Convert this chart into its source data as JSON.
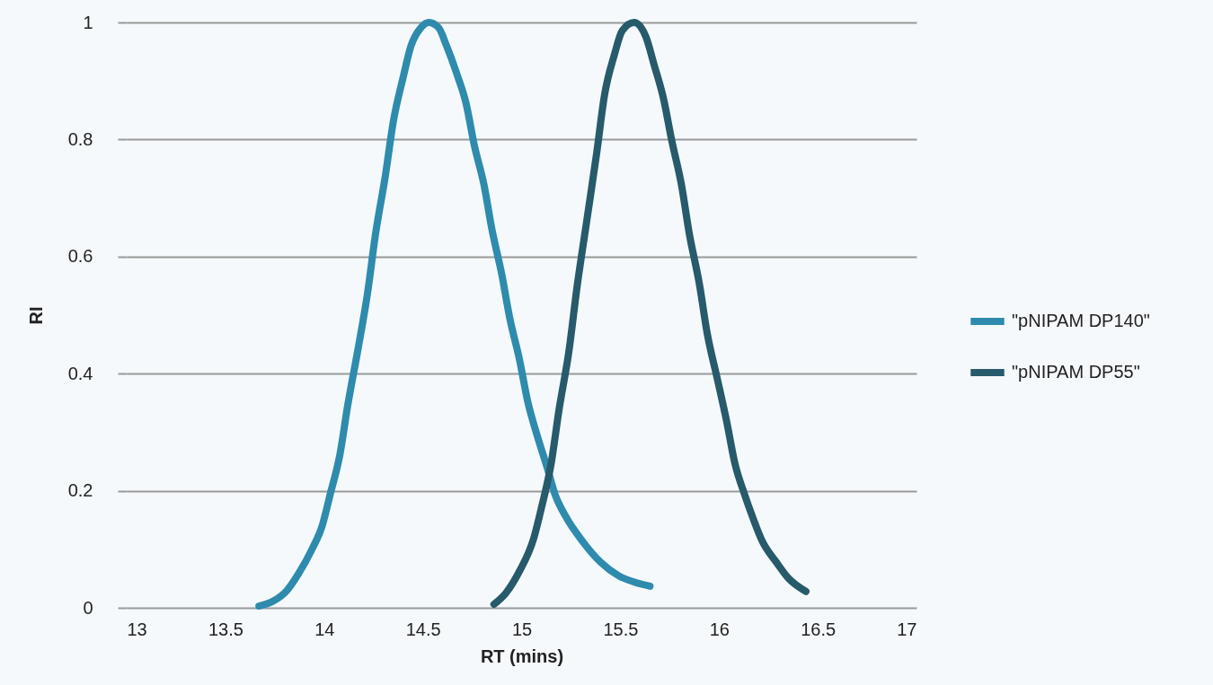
{
  "chart_data": {
    "type": "line",
    "xlabel": "RT (mins)",
    "ylabel": "RI",
    "xlim": [
      13,
      17
    ],
    "xticks": [
      13,
      13.5,
      14,
      14.5,
      15,
      15.5,
      16,
      16.5,
      17
    ],
    "ylim": [
      0,
      1
    ],
    "yticks": [
      0,
      0.2,
      0.4,
      0.6,
      0.8,
      1
    ],
    "grid": "y",
    "legend": "right",
    "line_style": "solid",
    "marker": "none",
    "series": [
      {
        "name": "\"pNIPAM DP140\"",
        "color": "#2e8bae",
        "x": [
          13.67,
          13.74,
          13.81,
          13.87,
          13.94,
          13.99,
          14.03,
          14.08,
          14.12,
          14.17,
          14.22,
          14.26,
          14.31,
          14.35,
          14.4,
          14.44,
          14.49,
          14.53,
          14.58,
          14.62,
          14.67,
          14.72,
          14.76,
          14.81,
          14.85,
          14.9,
          14.94,
          14.99,
          15.03,
          15.08,
          15.13,
          15.17,
          15.22,
          15.31,
          15.4,
          15.49,
          15.58,
          15.65
        ],
        "values": [
          0.003,
          0.011,
          0.029,
          0.058,
          0.101,
          0.14,
          0.193,
          0.262,
          0.347,
          0.439,
          0.538,
          0.638,
          0.738,
          0.83,
          0.906,
          0.96,
          0.991,
          1,
          0.991,
          0.96,
          0.914,
          0.86,
          0.791,
          0.722,
          0.646,
          0.569,
          0.495,
          0.423,
          0.354,
          0.293,
          0.239,
          0.193,
          0.158,
          0.113,
          0.078,
          0.055,
          0.043,
          0.037
        ]
      },
      {
        "name": "\"pNIPAM DP55\"",
        "color": "#275a6b",
        "x": [
          14.86,
          14.92,
          14.99,
          15.06,
          15.1,
          15.15,
          15.19,
          15.24,
          15.28,
          15.33,
          15.38,
          15.42,
          15.47,
          15.51,
          15.57,
          15.63,
          15.67,
          15.72,
          15.76,
          15.81,
          15.85,
          15.9,
          15.94,
          15.99,
          16.04,
          16.08,
          16.13,
          16.17,
          16.22,
          16.29,
          16.35,
          16.44
        ],
        "values": [
          0.006,
          0.025,
          0.063,
          0.117,
          0.17,
          0.247,
          0.339,
          0.439,
          0.546,
          0.661,
          0.776,
          0.876,
          0.945,
          0.986,
          1,
          0.975,
          0.929,
          0.868,
          0.799,
          0.722,
          0.638,
          0.554,
          0.469,
          0.393,
          0.316,
          0.247,
          0.193,
          0.155,
          0.113,
          0.078,
          0.051,
          0.028
        ]
      }
    ]
  }
}
